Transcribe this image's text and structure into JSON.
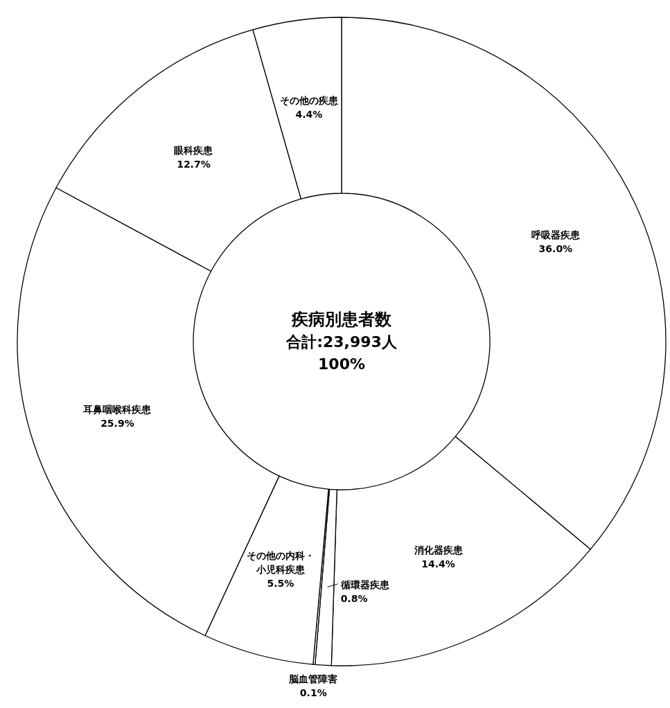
{
  "chart_data": {
    "type": "donut",
    "title": "疾病別患者数",
    "subtitle": "合計:23,993人",
    "annotations": [
      "100%"
    ],
    "categories": [
      "呼吸器疾患",
      "消化器疾患",
      "循環器疾患",
      "脳血管障害",
      "その他の内科・小児科疾患",
      "耳鼻咽喉科疾患",
      "眼科疾患",
      "その他の疾患"
    ],
    "values": [
      36.0,
      14.4,
      0.8,
      0.1,
      5.5,
      25.9,
      12.7,
      4.4
    ],
    "value_labels": [
      "36.0%",
      "14.4%",
      "0.8%",
      "0.1%",
      "5.5%",
      "25.9%",
      "12.7%",
      "4.4%"
    ],
    "colors": [
      "#ffffff",
      "#ffffff",
      "#ffffff",
      "#ffffff",
      "#ffffff",
      "#ffffff",
      "#ffffff",
      "#ffffff"
    ]
  }
}
